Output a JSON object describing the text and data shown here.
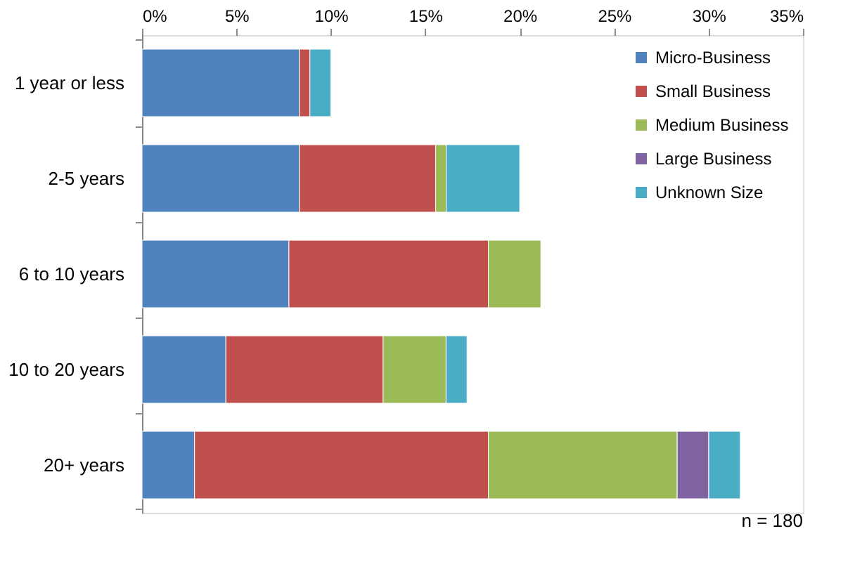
{
  "chart_data": {
    "type": "bar",
    "orientation": "horizontal",
    "stacked": true,
    "categories": [
      "1 year or less",
      "2-5 years",
      "6 to 10 years",
      "10 to 20 years",
      "20+ years"
    ],
    "series": [
      {
        "name": "Micro-Business",
        "color": "#4f81bd",
        "values": [
          8.33,
          8.33,
          7.78,
          4.44,
          2.78
        ]
      },
      {
        "name": "Small Business",
        "color": "#c0504d",
        "values": [
          0.56,
          7.22,
          10.56,
          8.33,
          15.56
        ]
      },
      {
        "name": "Medium Business",
        "color": "#9bbb59",
        "values": [
          0,
          0.56,
          2.78,
          3.33,
          10.0
        ]
      },
      {
        "name": "Large Business",
        "color": "#8064a2",
        "values": [
          0,
          0,
          0,
          0,
          1.67
        ]
      },
      {
        "name": "Unknown Size",
        "color": "#4bacc6",
        "values": [
          1.11,
          3.89,
          0,
          1.11,
          1.67
        ]
      }
    ],
    "xlim": [
      0,
      35
    ],
    "xticks": [
      {
        "value": 0,
        "label": "0%"
      },
      {
        "value": 5,
        "label": "5%"
      },
      {
        "value": 10,
        "label": "10%"
      },
      {
        "value": 15,
        "label": "15%"
      },
      {
        "value": 20,
        "label": "20%"
      },
      {
        "value": 25,
        "label": "25%"
      },
      {
        "value": 30,
        "label": "30%"
      },
      {
        "value": 35,
        "label": "35%"
      }
    ],
    "grid": false,
    "legend": "top right",
    "annotations": [
      "n = 180"
    ]
  }
}
